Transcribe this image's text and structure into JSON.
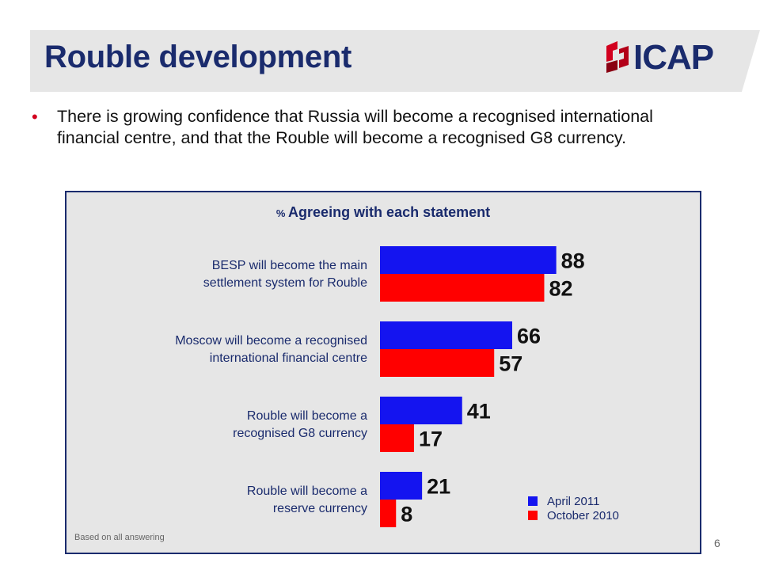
{
  "slide": {
    "title": "Rouble development",
    "logo_text": "ICAP",
    "bullet": "There is growing confidence that Russia will become a recognised international financial centre, and that the Rouble will become a recognised G8 currency.",
    "footnote": "Based on all answering",
    "page_number": "6"
  },
  "colors": {
    "title": "#1a2b6d",
    "bullet": "#d2001e",
    "april": "#1414f0",
    "october": "#ff0000",
    "panel": "#e6e6e6"
  },
  "chart_data": {
    "type": "bar",
    "orientation": "horizontal",
    "title_prefix": "%",
    "title": "Agreeing with each statement",
    "categories": [
      [
        "BESP will become the main",
        "settlement system for Rouble"
      ],
      [
        "Moscow will become a recognised",
        "international financial centre"
      ],
      [
        "Rouble will become a",
        "recognised G8 currency"
      ],
      [
        "Rouble will become a",
        "reserve currency"
      ]
    ],
    "series": [
      {
        "name": "April 2011",
        "values": [
          88,
          66,
          41,
          21
        ]
      },
      {
        "name": "October 2010",
        "values": [
          82,
          57,
          17,
          8
        ]
      }
    ],
    "xlim": [
      0,
      100
    ],
    "grid": false,
    "legend": "bottom-right",
    "data_labels": true
  }
}
